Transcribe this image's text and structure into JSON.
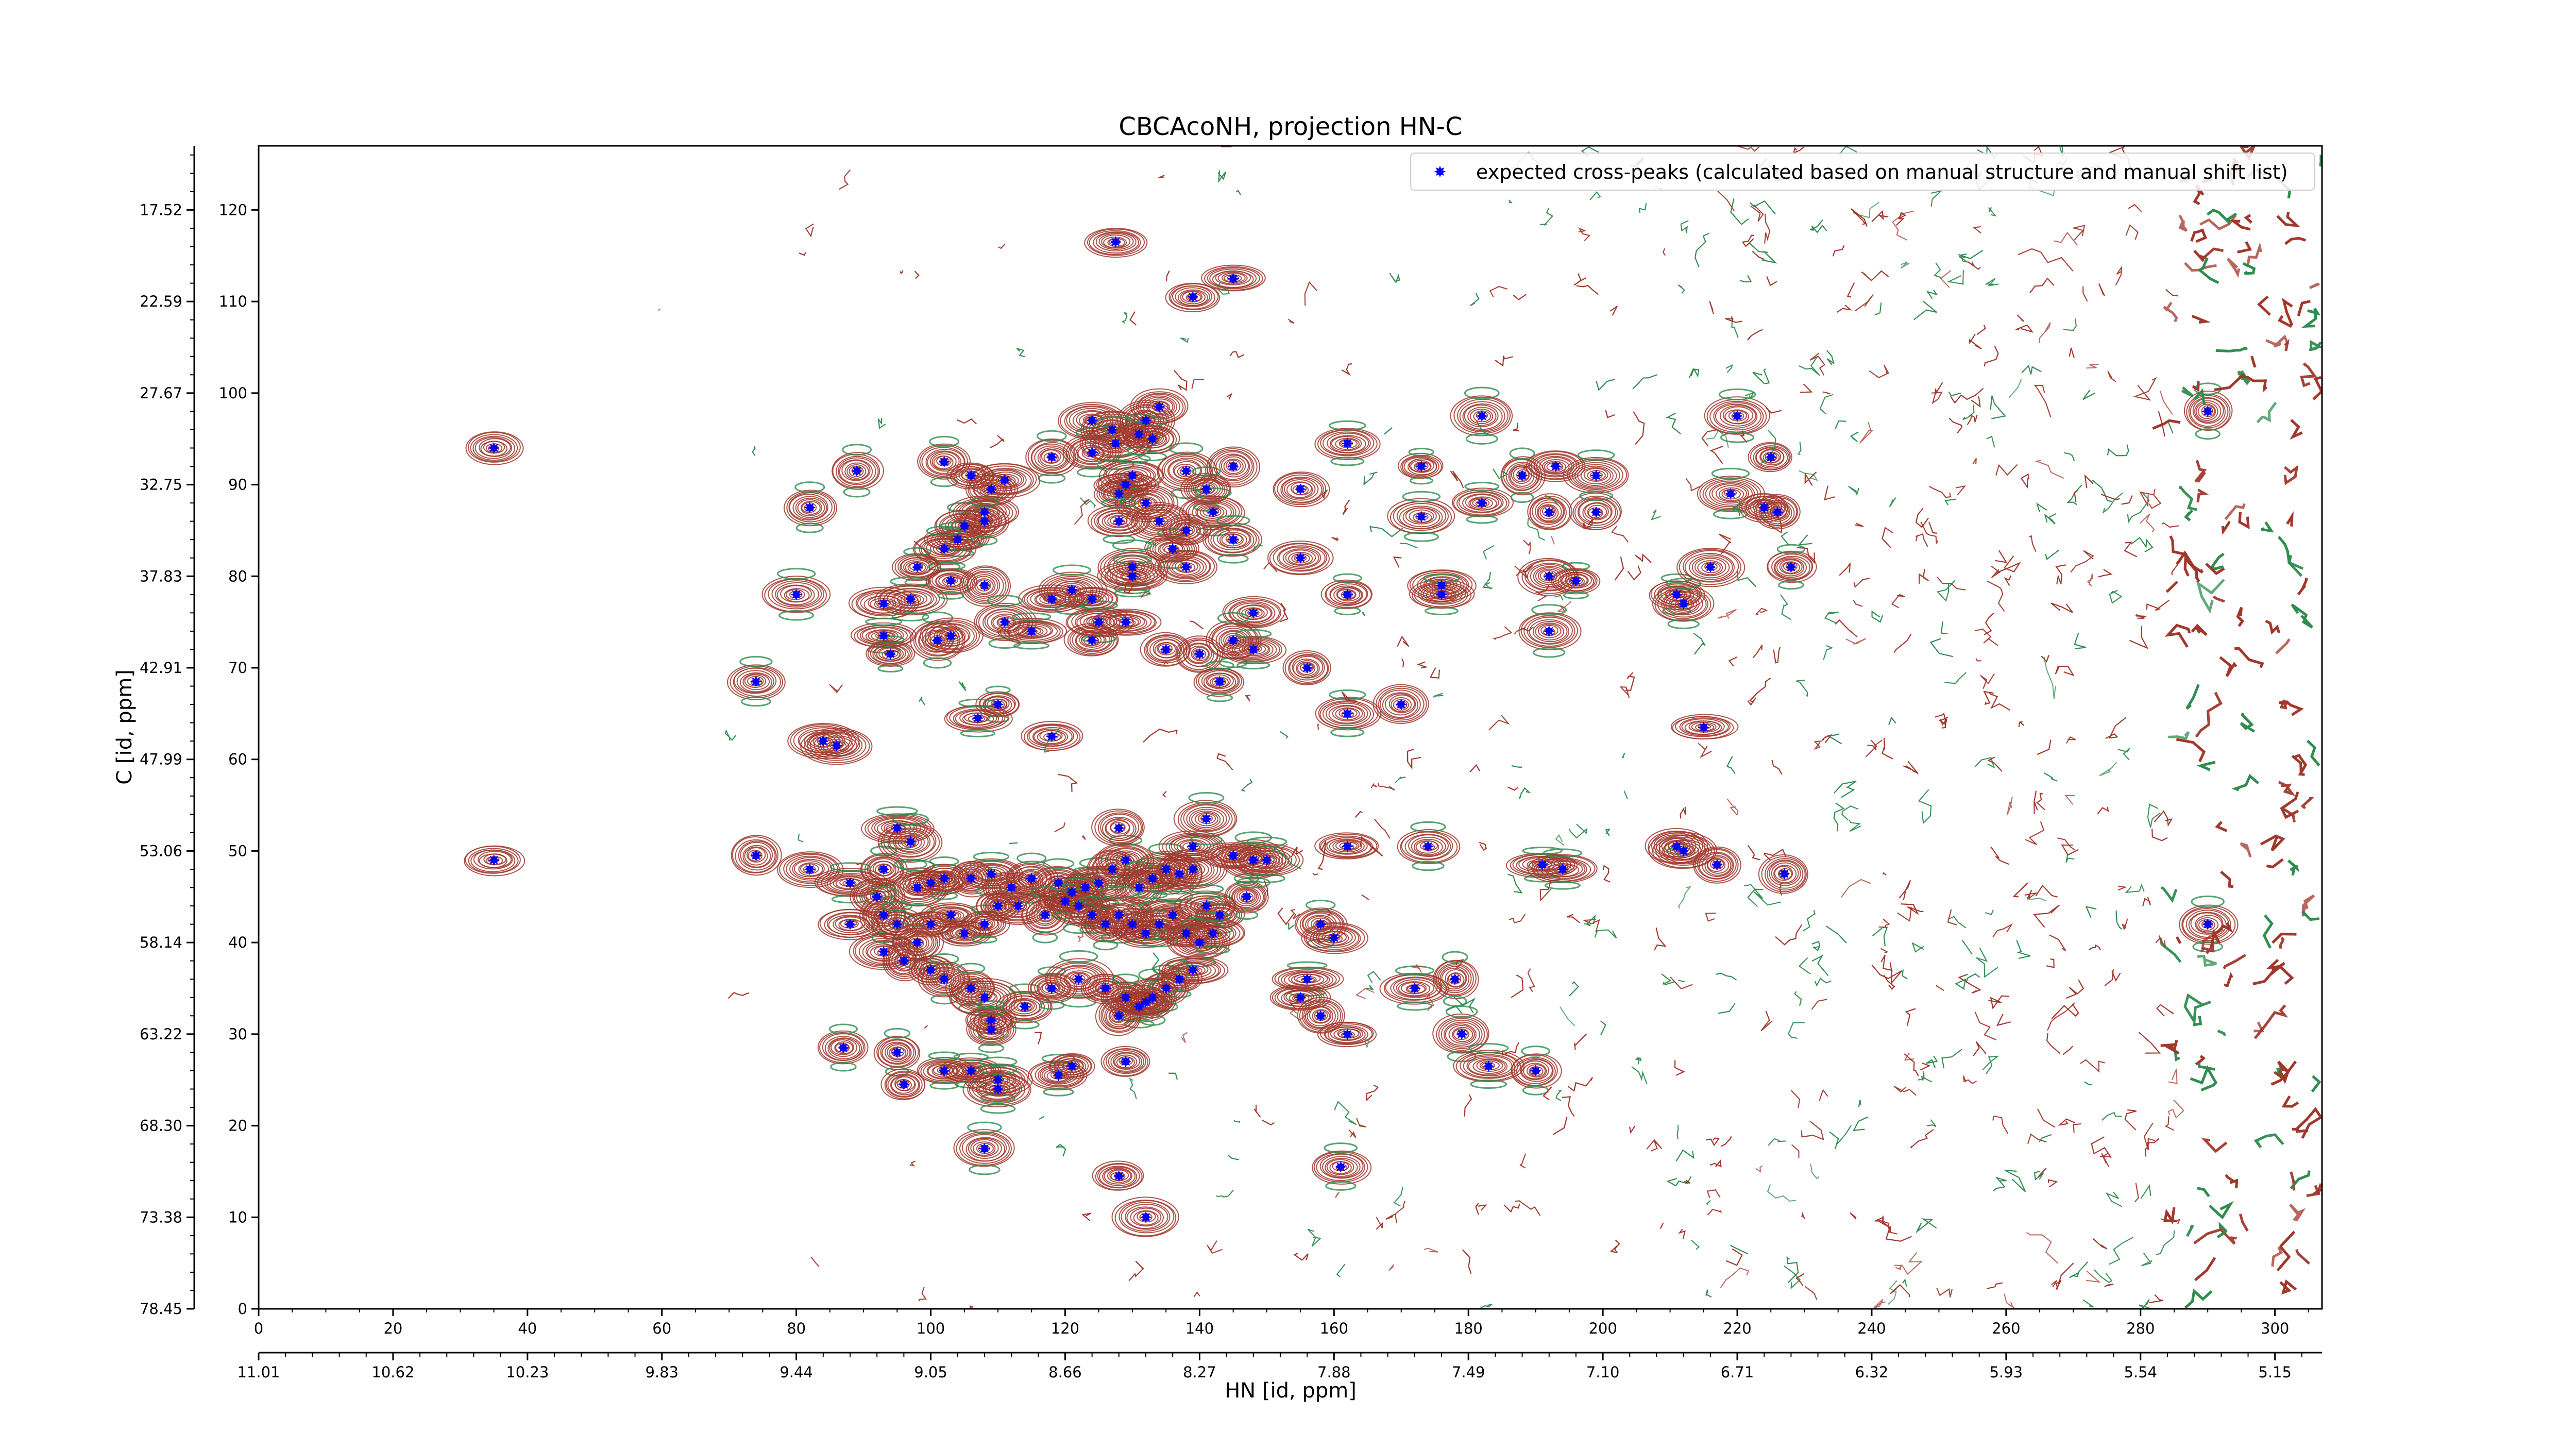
{
  "chart_data": {
    "type": "scatter",
    "title": "CBCAcoNH, projection HN-C",
    "xlabel": "HN [id, ppm]",
    "ylabel": "C [id, ppm]",
    "xlim": [
      0,
      307
    ],
    "ylim": [
      0,
      127
    ],
    "x_ticks": [
      0,
      20,
      40,
      60,
      80,
      100,
      120,
      140,
      160,
      180,
      200,
      220,
      240,
      260,
      280,
      300
    ],
    "y_ticks": [
      0,
      10,
      20,
      30,
      40,
      50,
      60,
      70,
      80,
      90,
      100,
      110,
      120
    ],
    "secondary_x_tick_labels": [
      "11.01",
      "10.62",
      "10.23",
      "9.83",
      "9.44",
      "9.05",
      "8.66",
      "8.27",
      "7.88",
      "7.49",
      "7.10",
      "6.71",
      "6.32",
      "5.93",
      "5.54",
      "5.15"
    ],
    "secondary_y_tick_labels": [
      "78.45",
      "73.38",
      "68.30",
      "63.22",
      "58.14",
      "53.06",
      "47.99",
      "42.91",
      "37.83",
      "32.75",
      "27.67",
      "22.59",
      "17.52"
    ],
    "grid": false,
    "legend_position": "top-right",
    "contour_colors": {
      "positive": "#a0362a",
      "negative": "#2e8b4e"
    },
    "marker_color": "#0000ff",
    "series": [
      {
        "name": "expected cross-peaks (calculated based on manual structure and manual shift list)",
        "points": [
          [
            127.5,
            116.5
          ],
          [
            139,
            110.5
          ],
          [
            145,
            112.5
          ],
          [
            35,
            94
          ],
          [
            89,
            91.5
          ],
          [
            82,
            87.5
          ],
          [
            102,
            92.5
          ],
          [
            106,
            91
          ],
          [
            109,
            89.5
          ],
          [
            111,
            90.5
          ],
          [
            118,
            93
          ],
          [
            124,
            97
          ],
          [
            124,
            93.5
          ],
          [
            132,
            97
          ],
          [
            127,
            96
          ],
          [
            127.5,
            94.5
          ],
          [
            131,
            95.5
          ],
          [
            133,
            95
          ],
          [
            134,
            98.5
          ],
          [
            138,
            91.5
          ],
          [
            141,
            89.5
          ],
          [
            142,
            87
          ],
          [
            145,
            92
          ],
          [
            128,
            89
          ],
          [
            129,
            90
          ],
          [
            130,
            91
          ],
          [
            132,
            88
          ],
          [
            128,
            86
          ],
          [
            134,
            86
          ],
          [
            136,
            83
          ],
          [
            130,
            81
          ],
          [
            138,
            85
          ],
          [
            145,
            84
          ],
          [
            105,
            85.5
          ],
          [
            104,
            84
          ],
          [
            108,
            87
          ],
          [
            108,
            86
          ],
          [
            102,
            83
          ],
          [
            98,
            81
          ],
          [
            108,
            79
          ],
          [
            130,
            80
          ],
          [
            138,
            81
          ],
          [
            148,
            76
          ],
          [
            155,
            82
          ],
          [
            162,
            78
          ],
          [
            176,
            79
          ],
          [
            176,
            78
          ],
          [
            162,
            94.5
          ],
          [
            155,
            89.5
          ],
          [
            173,
            86.5
          ],
          [
            173,
            92
          ],
          [
            182,
            88
          ],
          [
            182,
            97.5
          ],
          [
            188,
            91
          ],
          [
            192,
            87
          ],
          [
            193,
            92
          ],
          [
            199,
            87
          ],
          [
            199,
            91
          ],
          [
            211,
            78
          ],
          [
            212,
            77
          ],
          [
            216,
            81
          ],
          [
            220,
            97.5
          ],
          [
            225,
            93
          ],
          [
            219,
            89
          ],
          [
            224,
            87.5
          ],
          [
            226,
            87
          ],
          [
            228,
            81
          ],
          [
            80,
            78
          ],
          [
            93,
            77
          ],
          [
            97,
            77.5
          ],
          [
            103,
            79.5
          ],
          [
            118,
            77.5
          ],
          [
            124,
            77.5
          ],
          [
            121,
            78.5
          ],
          [
            125,
            75
          ],
          [
            129,
            75
          ],
          [
            93,
            73.5
          ],
          [
            94,
            71.5
          ],
          [
            101,
            73
          ],
          [
            103,
            73.5
          ],
          [
            111,
            75
          ],
          [
            115,
            74
          ],
          [
            124,
            73
          ],
          [
            135,
            72
          ],
          [
            140,
            71.5
          ],
          [
            145,
            73
          ],
          [
            148,
            72
          ],
          [
            143,
            68.5
          ],
          [
            156,
            70
          ],
          [
            192,
            80
          ],
          [
            196,
            79.5
          ],
          [
            192,
            74
          ],
          [
            74,
            68.5
          ],
          [
            110,
            66
          ],
          [
            107,
            64.5
          ],
          [
            118,
            62.5
          ],
          [
            162,
            65
          ],
          [
            170,
            66
          ],
          [
            215,
            63.5
          ],
          [
            84,
            62
          ],
          [
            86,
            61.5
          ],
          [
            35,
            49
          ],
          [
            74,
            49.5
          ],
          [
            82,
            48
          ],
          [
            93,
            48
          ],
          [
            88,
            46.5
          ],
          [
            95,
            52.5
          ],
          [
            97,
            51
          ],
          [
            92,
            45
          ],
          [
            98,
            46
          ],
          [
            100,
            46.5
          ],
          [
            102,
            47
          ],
          [
            106,
            47
          ],
          [
            109,
            47.5
          ],
          [
            112,
            46
          ],
          [
            115,
            47
          ],
          [
            119,
            46.5
          ],
          [
            121,
            45.5
          ],
          [
            123,
            46
          ],
          [
            125,
            46.5
          ],
          [
            127,
            48
          ],
          [
            129,
            49
          ],
          [
            131,
            46
          ],
          [
            133,
            47
          ],
          [
            135,
            48
          ],
          [
            137,
            47.5
          ],
          [
            139,
            48
          ],
          [
            141,
            44
          ],
          [
            143,
            43
          ],
          [
            147,
            45
          ],
          [
            148,
            49
          ],
          [
            88,
            42
          ],
          [
            93,
            43
          ],
          [
            95,
            42
          ],
          [
            98,
            40
          ],
          [
            100,
            42
          ],
          [
            103,
            43
          ],
          [
            105,
            41
          ],
          [
            108,
            42
          ],
          [
            110,
            44
          ],
          [
            113,
            44
          ],
          [
            117,
            43
          ],
          [
            120,
            44.5
          ],
          [
            122,
            44
          ],
          [
            124,
            43
          ],
          [
            126,
            42
          ],
          [
            128,
            43
          ],
          [
            130,
            42
          ],
          [
            132,
            41
          ],
          [
            134,
            42
          ],
          [
            136,
            43
          ],
          [
            138,
            41
          ],
          [
            140,
            40
          ],
          [
            142,
            41
          ],
          [
            93,
            39
          ],
          [
            96,
            38
          ],
          [
            100,
            37
          ],
          [
            102,
            36
          ],
          [
            106,
            35
          ],
          [
            108,
            34
          ],
          [
            114,
            33
          ],
          [
            118,
            35
          ],
          [
            122,
            36
          ],
          [
            126,
            35
          ],
          [
            129,
            34
          ],
          [
            131,
            33
          ],
          [
            133,
            34
          ],
          [
            135,
            35
          ],
          [
            137,
            36
          ],
          [
            139,
            37
          ],
          [
            128,
            52.5
          ],
          [
            139,
            50.5
          ],
          [
            141,
            53.5
          ],
          [
            145,
            49.5
          ],
          [
            150,
            49
          ],
          [
            162,
            50.5
          ],
          [
            174,
            50.5
          ],
          [
            191,
            48.5
          ],
          [
            194,
            48
          ],
          [
            211,
            50.5
          ],
          [
            212,
            50
          ],
          [
            217,
            48.5
          ],
          [
            227,
            47.5
          ],
          [
            128,
            32
          ],
          [
            132,
            33.5
          ],
          [
            109,
            31.5
          ],
          [
            109,
            30.5
          ],
          [
            87,
            28.5
          ],
          [
            95,
            28
          ],
          [
            102,
            26
          ],
          [
            106,
            26
          ],
          [
            110,
            25
          ],
          [
            110,
            24
          ],
          [
            119,
            25.5
          ],
          [
            121,
            26.5
          ],
          [
            129,
            27
          ],
          [
            158,
            42
          ],
          [
            160,
            40.5
          ],
          [
            156,
            36
          ],
          [
            155,
            34
          ],
          [
            158,
            32
          ],
          [
            162,
            30
          ],
          [
            172,
            35
          ],
          [
            178,
            36
          ],
          [
            179,
            30
          ],
          [
            183,
            26.5
          ],
          [
            190,
            26
          ],
          [
            96,
            24.5
          ],
          [
            108,
            17.5
          ],
          [
            128,
            14.5
          ],
          [
            132,
            10
          ],
          [
            161,
            15.5
          ],
          [
            290,
            42
          ],
          [
            290,
            98
          ]
        ]
      }
    ]
  }
}
